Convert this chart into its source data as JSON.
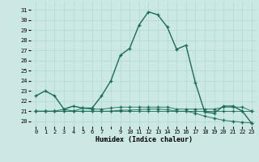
{
  "xlabel": "Humidex (Indice chaleur)",
  "bg_color": "#cce8e4",
  "grid_color": "#b0d8d0",
  "line_color": "#1a6b5a",
  "xlim": [
    -0.5,
    23.5
  ],
  "ylim": [
    19.5,
    31.8
  ],
  "yticks": [
    20,
    21,
    22,
    23,
    24,
    25,
    26,
    27,
    28,
    29,
    30,
    31
  ],
  "xtick_labels": [
    "0",
    "1",
    "2",
    "3",
    "4",
    "5",
    "6",
    "7",
    "",
    "9",
    "10",
    "11",
    "12",
    "13",
    "14",
    "15",
    "16",
    "17",
    "18",
    "19",
    "20",
    "21",
    "22",
    "23"
  ],
  "series": [
    [
      22.5,
      23.0,
      22.5,
      21.2,
      21.5,
      21.3,
      21.3,
      22.5,
      24.0,
      26.5,
      27.2,
      29.5,
      30.8,
      30.5,
      29.3,
      27.1,
      27.5,
      23.8,
      20.9,
      20.8,
      21.5,
      21.5,
      21.0,
      19.8
    ],
    [
      21.0,
      21.0,
      21.0,
      21.0,
      21.0,
      21.0,
      21.0,
      21.0,
      21.0,
      21.0,
      21.0,
      21.0,
      21.0,
      21.0,
      21.0,
      21.0,
      21.0,
      21.0,
      21.0,
      21.0,
      21.0,
      21.0,
      21.0,
      21.0
    ],
    [
      21.0,
      21.0,
      21.0,
      21.0,
      21.0,
      21.0,
      21.0,
      21.0,
      21.0,
      21.1,
      21.1,
      21.15,
      21.2,
      21.2,
      21.15,
      21.0,
      21.0,
      20.8,
      20.5,
      20.3,
      20.1,
      20.0,
      19.9,
      19.85
    ],
    [
      21.0,
      21.0,
      21.0,
      21.2,
      21.0,
      21.3,
      21.2,
      21.2,
      21.3,
      21.4,
      21.4,
      21.4,
      21.4,
      21.4,
      21.4,
      21.2,
      21.2,
      21.2,
      21.2,
      21.2,
      21.4,
      21.4,
      21.4,
      21.0
    ]
  ]
}
